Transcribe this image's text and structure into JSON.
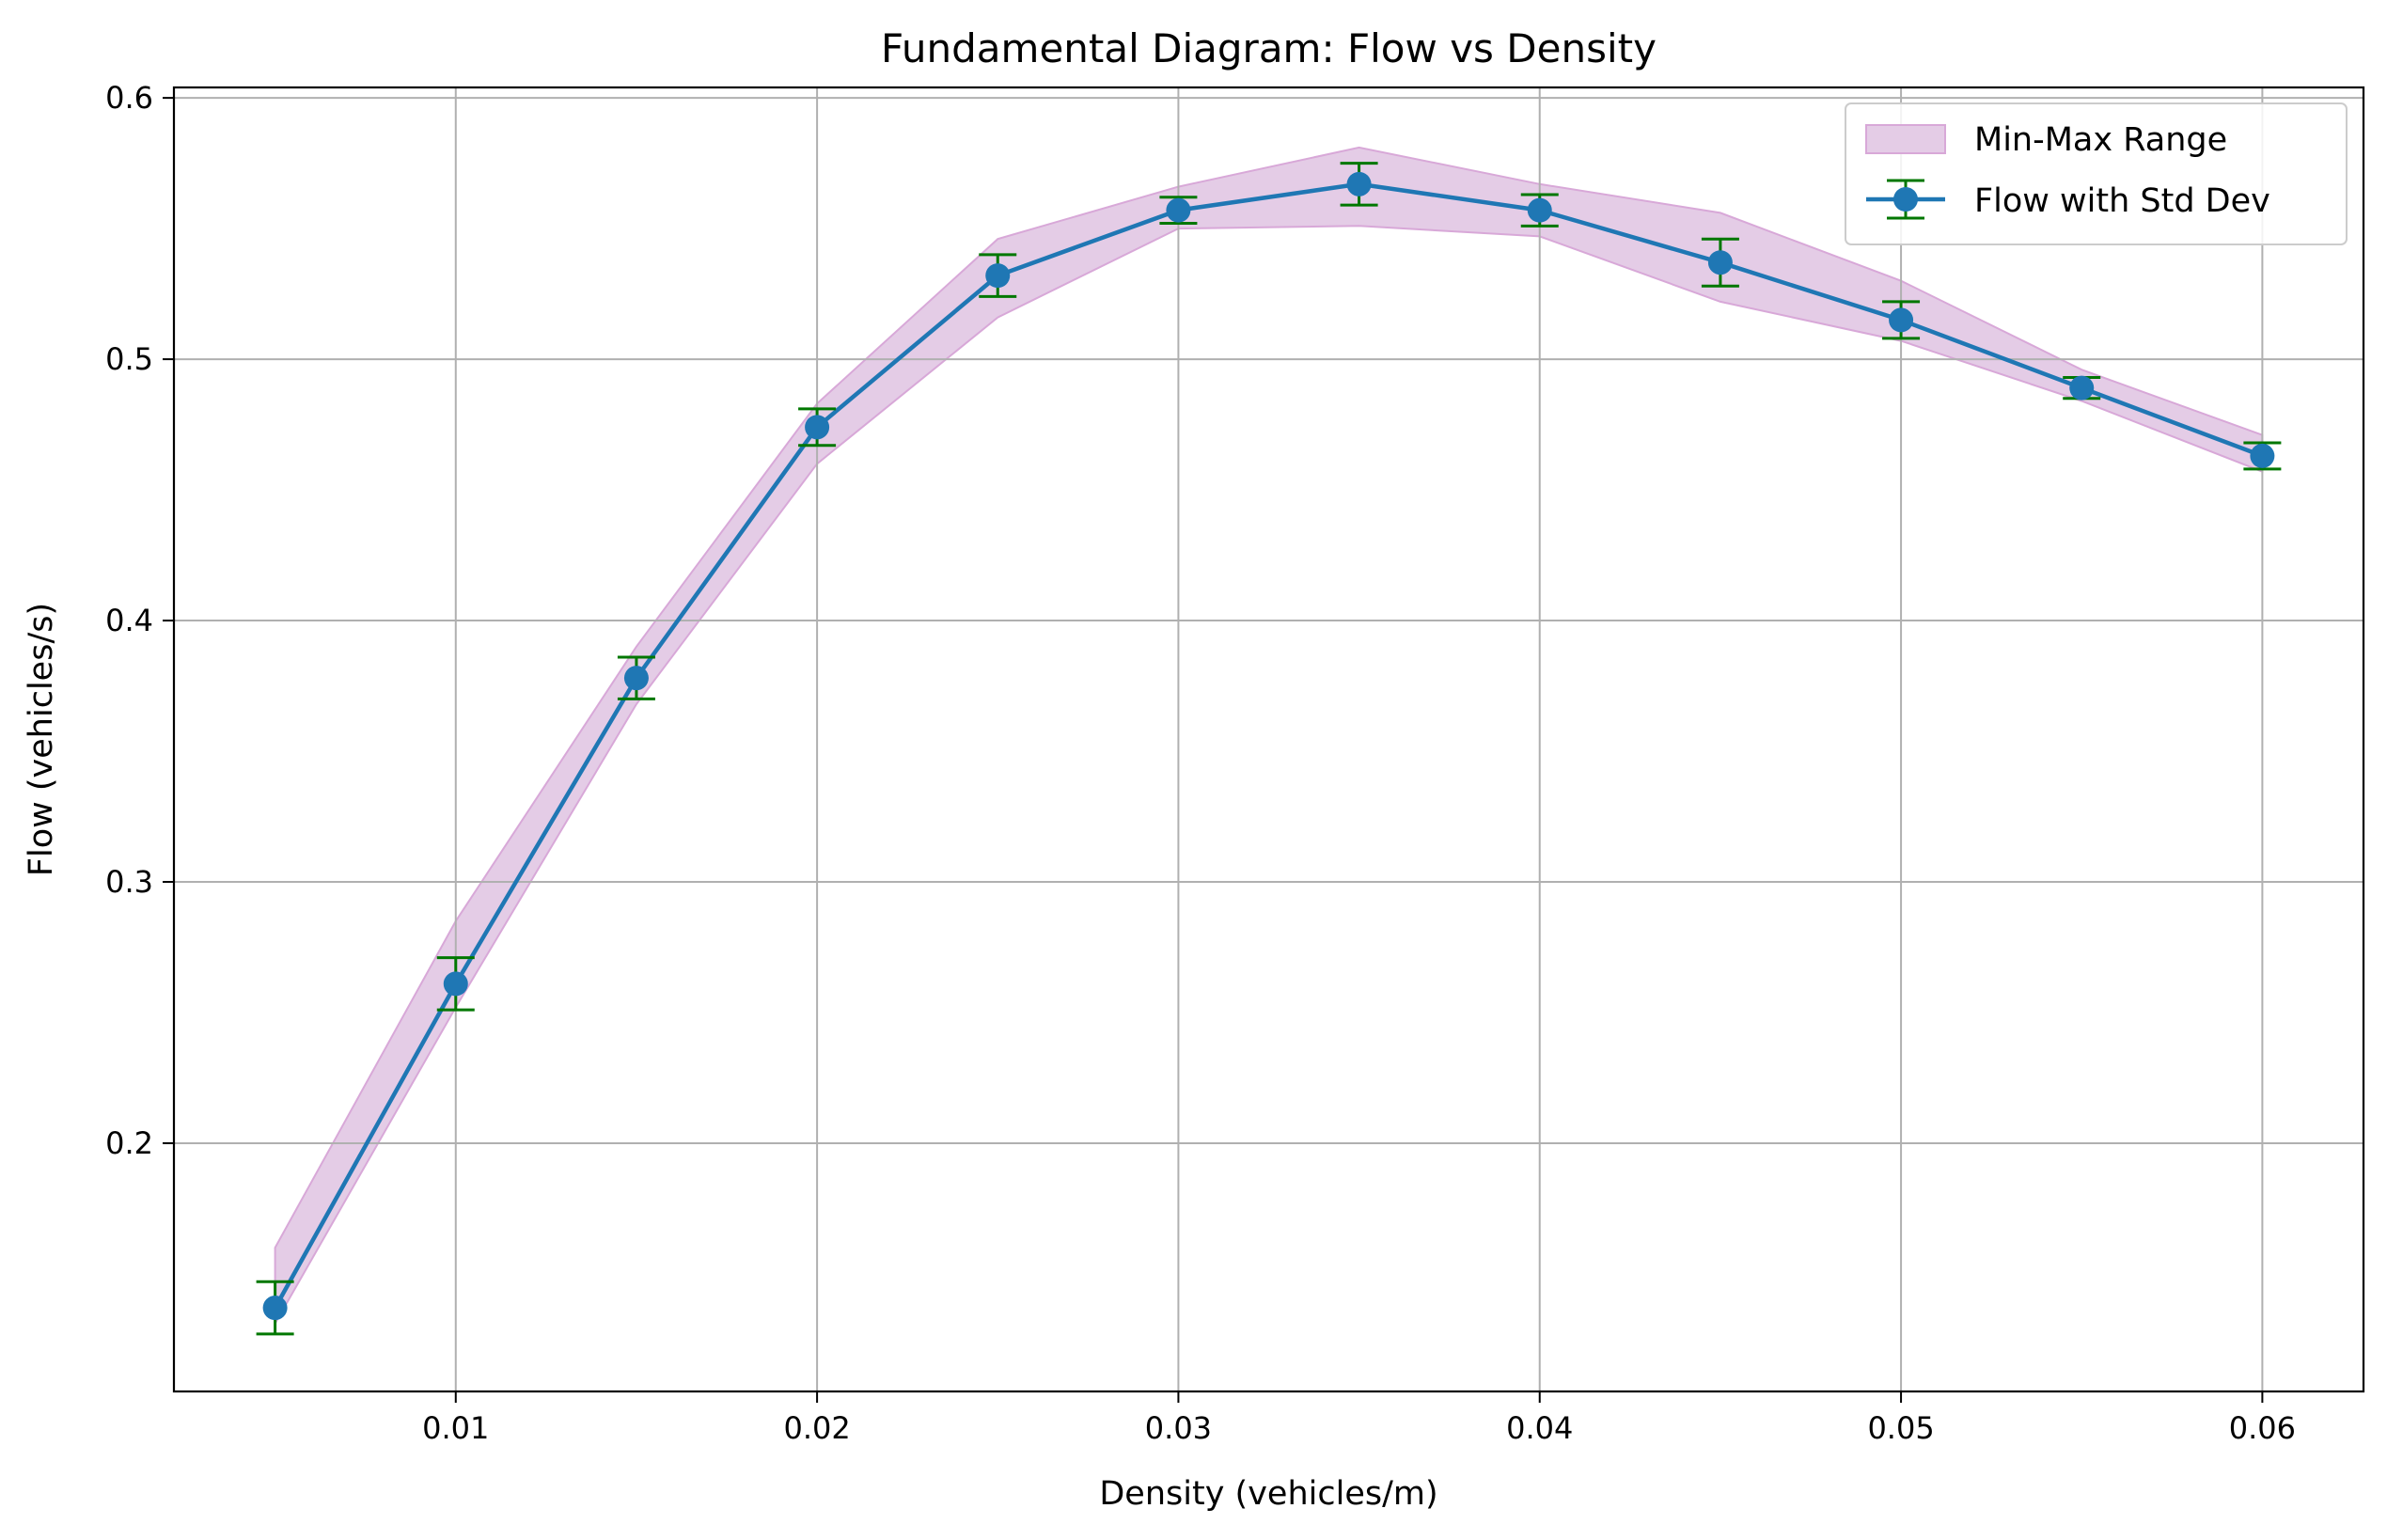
{
  "chart_data": {
    "type": "line",
    "title": "Fundamental Diagram: Flow vs Density",
    "xlabel": "Density (vehicles/m)",
    "ylabel": "Flow (vehicles/s)",
    "xlim": [
      0.0022,
      0.0628
    ],
    "ylim": [
      0.105,
      0.604
    ],
    "x_ticks": [
      0.01,
      0.02,
      0.03,
      0.04,
      0.05,
      0.06
    ],
    "x_tick_labels": [
      "0.01",
      "0.02",
      "0.03",
      "0.04",
      "0.05",
      "0.06"
    ],
    "y_ticks": [
      0.2,
      0.3,
      0.4,
      0.5,
      0.6
    ],
    "y_tick_labels": [
      "0.2",
      "0.3",
      "0.4",
      "0.5",
      "0.6"
    ],
    "grid": true,
    "legend_position": "top-right",
    "x": [
      0.005,
      0.01,
      0.015,
      0.02,
      0.025,
      0.03,
      0.035,
      0.04,
      0.045,
      0.05,
      0.055,
      0.06
    ],
    "series": [
      {
        "name": "Flow with Std Dev",
        "kind": "line-errorbar",
        "color": "#1f77b4",
        "errorbar_color": "#007700",
        "values": [
          0.137,
          0.261,
          0.378,
          0.474,
          0.532,
          0.557,
          0.567,
          0.557,
          0.537,
          0.515,
          0.489,
          0.463
        ],
        "std": [
          0.01,
          0.01,
          0.008,
          0.007,
          0.008,
          0.005,
          0.008,
          0.006,
          0.009,
          0.007,
          0.004,
          0.005
        ]
      },
      {
        "name": "Min-Max Range",
        "kind": "band",
        "color": "#e4cce6",
        "edge_color": "#d8a8d8",
        "min": [
          0.131,
          0.252,
          0.368,
          0.46,
          0.516,
          0.55,
          0.551,
          0.547,
          0.522,
          0.507,
          0.484,
          0.457
        ],
        "max": [
          0.16,
          0.285,
          0.39,
          0.483,
          0.546,
          0.566,
          0.581,
          0.567,
          0.556,
          0.53,
          0.496,
          0.471
        ]
      }
    ]
  }
}
